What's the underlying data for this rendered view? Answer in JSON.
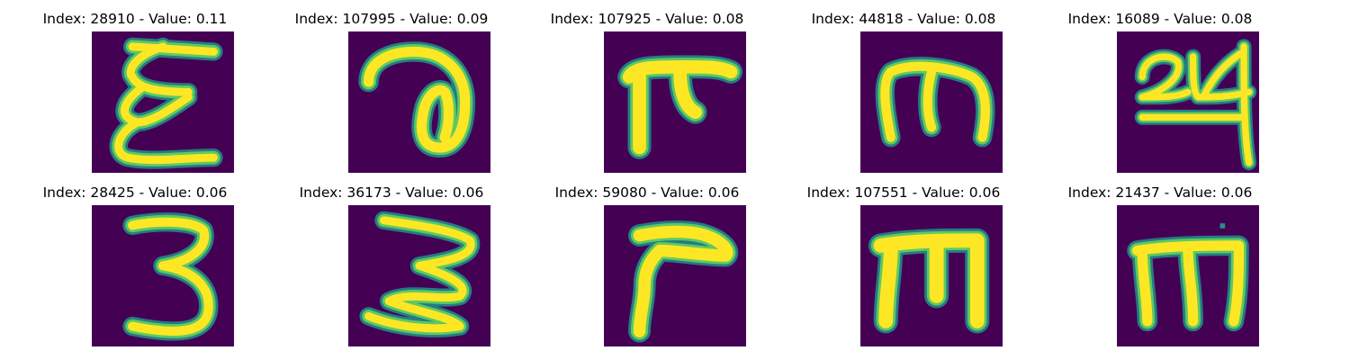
{
  "colors": {
    "background": "#440154",
    "stroke_core": "#fde725",
    "stroke_mid": "#5ec962",
    "stroke_edge": "#21918c"
  },
  "panels": [
    {
      "title": "Index: 28910 - Value: 0.11"
    },
    {
      "title": "Index: 107995 - Value: 0.09"
    },
    {
      "title": "Index: 107925 - Value: 0.08"
    },
    {
      "title": "Index: 44818 - Value: 0.08"
    },
    {
      "title": "Index: 16089 - Value: 0.08"
    },
    {
      "title": "Index: 28425 - Value: 0.06"
    },
    {
      "title": "Index: 36173 - Value: 0.06"
    },
    {
      "title": "Index: 59080 - Value: 0.06"
    },
    {
      "title": "Index: 107551 - Value: 0.06"
    },
    {
      "title": "Index: 21437 - Value: 0.06"
    }
  ]
}
